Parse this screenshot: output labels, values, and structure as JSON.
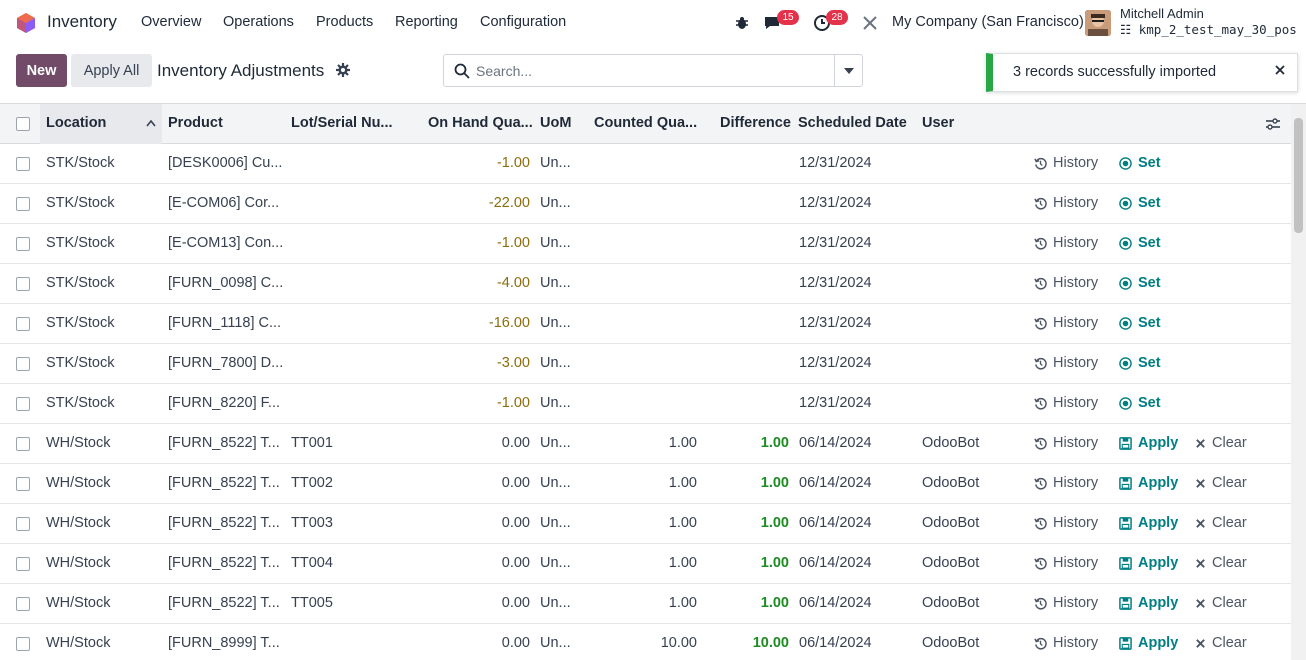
{
  "navbar": {
    "app_name": "Inventory",
    "menu": [
      "Overview",
      "Operations",
      "Products",
      "Reporting",
      "Configuration"
    ],
    "messages_count": "15",
    "activities_count": "28",
    "company": "My Company (San Francisco)",
    "user_name": "Mitchell Admin",
    "db_name": "kmp_2_test_may_30_pos"
  },
  "control": {
    "new_label": "New",
    "apply_all_label": "Apply All",
    "title": "Inventory Adjustments",
    "search_placeholder": "Search..."
  },
  "toast": {
    "message": "3 records successfully imported"
  },
  "columns": [
    "Location",
    "Product",
    "Lot/Serial Nu...",
    "On Hand Qua...",
    "UoM",
    "Counted Qua...",
    "Difference",
    "Scheduled Date",
    "User"
  ],
  "actions": {
    "history": "History",
    "set": "Set",
    "apply": "Apply",
    "clear": "Clear"
  },
  "rows": [
    {
      "location": "STK/Stock",
      "product": "[DESK0006] Cu...",
      "lot": "",
      "on_hand": "-1.00",
      "uom": "Un...",
      "counted": "",
      "difference": "",
      "date": "12/31/2024",
      "user": "",
      "mode": "set"
    },
    {
      "location": "STK/Stock",
      "product": "[E-COM06] Cor...",
      "lot": "",
      "on_hand": "-22.00",
      "uom": "Un...",
      "counted": "",
      "difference": "",
      "date": "12/31/2024",
      "user": "",
      "mode": "set"
    },
    {
      "location": "STK/Stock",
      "product": "[E-COM13] Con...",
      "lot": "",
      "on_hand": "-1.00",
      "uom": "Un...",
      "counted": "",
      "difference": "",
      "date": "12/31/2024",
      "user": "",
      "mode": "set"
    },
    {
      "location": "STK/Stock",
      "product": "[FURN_0098] C...",
      "lot": "",
      "on_hand": "-4.00",
      "uom": "Un...",
      "counted": "",
      "difference": "",
      "date": "12/31/2024",
      "user": "",
      "mode": "set"
    },
    {
      "location": "STK/Stock",
      "product": "[FURN_1118] C...",
      "lot": "",
      "on_hand": "-16.00",
      "uom": "Un...",
      "counted": "",
      "difference": "",
      "date": "12/31/2024",
      "user": "",
      "mode": "set"
    },
    {
      "location": "STK/Stock",
      "product": "[FURN_7800] D...",
      "lot": "",
      "on_hand": "-3.00",
      "uom": "Un...",
      "counted": "",
      "difference": "",
      "date": "12/31/2024",
      "user": "",
      "mode": "set"
    },
    {
      "location": "STK/Stock",
      "product": "[FURN_8220] F...",
      "lot": "",
      "on_hand": "-1.00",
      "uom": "Un...",
      "counted": "",
      "difference": "",
      "date": "12/31/2024",
      "user": "",
      "mode": "set"
    },
    {
      "location": "WH/Stock",
      "product": "[FURN_8522] T...",
      "lot": "TT001",
      "on_hand": "0.00",
      "uom": "Un...",
      "counted": "1.00",
      "difference": "1.00",
      "date": "06/14/2024",
      "user": "OdooBot",
      "mode": "apply"
    },
    {
      "location": "WH/Stock",
      "product": "[FURN_8522] T...",
      "lot": "TT002",
      "on_hand": "0.00",
      "uom": "Un...",
      "counted": "1.00",
      "difference": "1.00",
      "date": "06/14/2024",
      "user": "OdooBot",
      "mode": "apply"
    },
    {
      "location": "WH/Stock",
      "product": "[FURN_8522] T...",
      "lot": "TT003",
      "on_hand": "0.00",
      "uom": "Un...",
      "counted": "1.00",
      "difference": "1.00",
      "date": "06/14/2024",
      "user": "OdooBot",
      "mode": "apply"
    },
    {
      "location": "WH/Stock",
      "product": "[FURN_8522] T...",
      "lot": "TT004",
      "on_hand": "0.00",
      "uom": "Un...",
      "counted": "1.00",
      "difference": "1.00",
      "date": "06/14/2024",
      "user": "OdooBot",
      "mode": "apply"
    },
    {
      "location": "WH/Stock",
      "product": "[FURN_8522] T...",
      "lot": "TT005",
      "on_hand": "0.00",
      "uom": "Un...",
      "counted": "1.00",
      "difference": "1.00",
      "date": "06/14/2024",
      "user": "OdooBot",
      "mode": "apply"
    },
    {
      "location": "WH/Stock",
      "product": "[FURN_8999] T...",
      "lot": "",
      "on_hand": "0.00",
      "uom": "Un...",
      "counted": "10.00",
      "difference": "10.00",
      "date": "06/14/2024",
      "user": "OdooBot",
      "mode": "apply"
    }
  ],
  "colors": {
    "brand": "#714b67",
    "accent": "#017e84",
    "success": "#28a745",
    "badge": "#e3324a",
    "negative": "#8a6d0b",
    "positive": "#1f8b23"
  }
}
